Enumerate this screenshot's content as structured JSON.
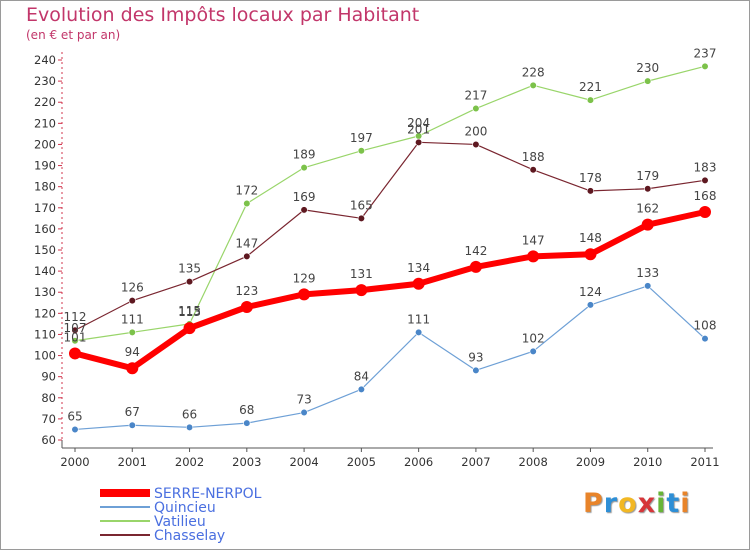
{
  "header": {
    "title": "Evolution des Impôts locaux par Habitant",
    "subtitle": "(en € et par an)"
  },
  "logo": {
    "text": "Proxiti",
    "letter_colors": [
      "#e8842a",
      "#2e8fd6",
      "#f2b824",
      "#d6363a",
      "#67b437",
      "#2e8fd6",
      "#e8842a"
    ]
  },
  "chart_data": {
    "type": "line",
    "title": "Evolution des Impôts locaux par Habitant",
    "subtitle": "(en € et par an)",
    "x": [
      "2000",
      "2001",
      "2002",
      "2003",
      "2004",
      "2005",
      "2006",
      "2007",
      "2008",
      "2009",
      "2010",
      "2011"
    ],
    "ylim": [
      60,
      240
    ],
    "yticks": [
      60,
      70,
      80,
      90,
      100,
      110,
      120,
      130,
      140,
      150,
      160,
      170,
      180,
      190,
      200,
      210,
      220,
      230,
      240
    ],
    "grid": false,
    "legend_position": "bottom-left",
    "series": [
      {
        "name": "Vatilieu",
        "color": "#99d56a",
        "line_width": 1.2,
        "marker_color": "#7cc24a",
        "values": [
          107,
          111,
          115,
          172,
          189,
          197,
          204,
          217,
          228,
          221,
          230,
          237
        ],
        "labels": [
          "107",
          "111",
          "115",
          "172",
          "189",
          "197",
          "204",
          "217",
          "228",
          "221",
          "230",
          "237"
        ]
      },
      {
        "name": "Chasselay",
        "color": "#7a2630",
        "line_width": 1.2,
        "marker_color": "#5e1820",
        "values": [
          112,
          126,
          135,
          147,
          169,
          165,
          201,
          200,
          188,
          178,
          179,
          183
        ],
        "labels": [
          "112",
          "126",
          "135",
          "147",
          "169",
          "165",
          "201",
          "200",
          "188",
          "178",
          "179",
          "183"
        ]
      },
      {
        "name": "Quincieu",
        "color": "#6ea0d6",
        "line_width": 1.2,
        "marker_color": "#4a86c8",
        "values": [
          65,
          67,
          66,
          68,
          73,
          84,
          111,
          93,
          102,
          124,
          133,
          108
        ],
        "labels": [
          "65",
          "67",
          "66",
          "68",
          "73",
          "84",
          "111",
          "93",
          "102",
          "124",
          "133",
          "108"
        ]
      },
      {
        "name": "SERRE-NERPOL",
        "color": "#ff0000",
        "line_width": 6,
        "marker_color": "#ff0000",
        "values": [
          101,
          94,
          113,
          123,
          129,
          131,
          134,
          142,
          147,
          148,
          162,
          168
        ],
        "labels": [
          "101",
          "94",
          "113",
          "123",
          "129",
          "131",
          "134",
          "142",
          "147",
          "148",
          "162",
          "168"
        ]
      }
    ],
    "legend": [
      {
        "name": "SERRE-NERPOL",
        "color": "#ff0000",
        "text_color": "#4a6fe0"
      },
      {
        "name": "Quincieu",
        "color": "#6ea0d6",
        "text_color": "#4a6fe0"
      },
      {
        "name": "Vatilieu",
        "color": "#99d56a",
        "text_color": "#4a6fe0"
      },
      {
        "name": "Chasselay",
        "color": "#7a2630",
        "text_color": "#4a6fe0"
      }
    ]
  }
}
